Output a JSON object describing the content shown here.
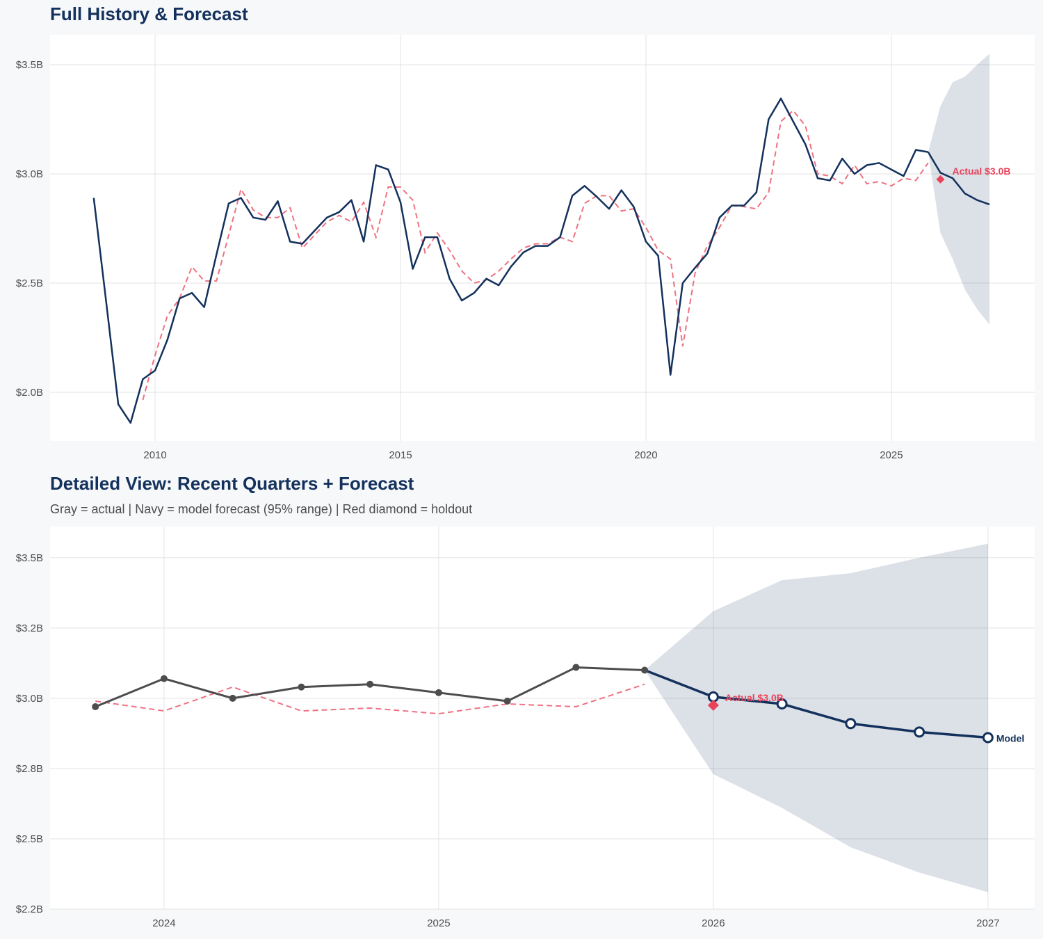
{
  "colors": {
    "actual_full": "#13315c",
    "actual_recent": "#4d4d4d",
    "forecast": "#13315c",
    "fitted": "#e8435a",
    "holdout": "#e8435a",
    "band": "#13315c",
    "background": "#f7f8fa"
  },
  "chart_data": [
    {
      "type": "line",
      "title": "Full History & Forecast",
      "xlabel": "",
      "ylabel": "",
      "xlim": [
        2007.86,
        2027.92
      ],
      "ylim": [
        1.777,
        3.637
      ],
      "grid": true,
      "x_ticks": [
        {
          "value": 2010,
          "label": "2010"
        },
        {
          "value": 2015,
          "label": "2015"
        },
        {
          "value": 2020,
          "label": "2020"
        },
        {
          "value": 2025,
          "label": "2025"
        }
      ],
      "y_ticks": [
        {
          "value": 2.0,
          "label": "$2.0B"
        },
        {
          "value": 2.5,
          "label": "$2.5B"
        },
        {
          "value": 3.0,
          "label": "$3.0B"
        },
        {
          "value": 3.5,
          "label": "$3.5B"
        }
      ],
      "actual": {
        "x": [
          2008.75,
          2009,
          2009.25,
          2009.5,
          2009.75,
          2010,
          2010.25,
          2010.5,
          2010.75,
          2011,
          2011.25,
          2011.5,
          2011.75,
          2012,
          2012.25,
          2012.5,
          2012.75,
          2013,
          2013.25,
          2013.5,
          2013.75,
          2014,
          2014.25,
          2014.5,
          2014.75,
          2015,
          2015.25,
          2015.5,
          2015.75,
          2016,
          2016.25,
          2016.5,
          2016.75,
          2017,
          2017.25,
          2017.5,
          2017.75,
          2018,
          2018.25,
          2018.5,
          2018.75,
          2019,
          2019.25,
          2019.5,
          2019.75,
          2020,
          2020.25,
          2020.5,
          2020.75,
          2021,
          2021.25,
          2021.5,
          2021.75,
          2022,
          2022.25,
          2022.5,
          2022.75,
          2023,
          2023.25,
          2023.5,
          2023.75,
          2024,
          2024.25,
          2024.5,
          2024.75,
          2025,
          2025.25,
          2025.5,
          2025.75
        ],
        "y": [
          2.89,
          2.42,
          1.945,
          1.86,
          2.06,
          2.1,
          2.24,
          2.43,
          2.455,
          2.39,
          2.63,
          2.865,
          2.89,
          2.8,
          2.79,
          2.875,
          2.69,
          2.68,
          2.74,
          2.8,
          2.825,
          2.88,
          2.69,
          3.04,
          3.02,
          2.87,
          2.565,
          2.71,
          2.71,
          2.52,
          2.42,
          2.455,
          2.52,
          2.49,
          2.575,
          2.64,
          2.67,
          2.67,
          2.71,
          2.9,
          2.945,
          2.895,
          2.84,
          2.925,
          2.85,
          2.69,
          2.625,
          2.08,
          2.5,
          2.57,
          2.635,
          2.8,
          2.855,
          2.855,
          2.915,
          3.25,
          3.345,
          3.24,
          3.135,
          2.98,
          2.97,
          3.07,
          3.0,
          3.04,
          3.05,
          3.02,
          2.99,
          3.11,
          3.1
        ]
      },
      "fitted": {
        "x": [
          2009.75,
          2010,
          2010.25,
          2010.5,
          2010.75,
          2011,
          2011.25,
          2011.5,
          2011.75,
          2012,
          2012.25,
          2012.5,
          2012.75,
          2013,
          2013.25,
          2013.5,
          2013.75,
          2014,
          2014.25,
          2014.5,
          2014.75,
          2015,
          2015.25,
          2015.5,
          2015.75,
          2016,
          2016.25,
          2016.5,
          2016.75,
          2017,
          2017.25,
          2017.5,
          2017.75,
          2018,
          2018.25,
          2018.5,
          2018.75,
          2019,
          2019.25,
          2019.5,
          2019.75,
          2020,
          2020.25,
          2020.5,
          2020.75,
          2021,
          2021.25,
          2021.5,
          2021.75,
          2022,
          2022.25,
          2022.5,
          2022.75,
          2023,
          2023.25,
          2023.5,
          2023.75,
          2024,
          2024.25,
          2024.5,
          2024.75,
          2025,
          2025.25,
          2025.5,
          2025.75
        ],
        "y": [
          1.965,
          2.17,
          2.35,
          2.43,
          2.575,
          2.51,
          2.51,
          2.72,
          2.93,
          2.835,
          2.8,
          2.8,
          2.845,
          2.66,
          2.72,
          2.78,
          2.81,
          2.78,
          2.87,
          2.71,
          2.94,
          2.94,
          2.88,
          2.64,
          2.73,
          2.65,
          2.555,
          2.5,
          2.515,
          2.555,
          2.61,
          2.66,
          2.68,
          2.68,
          2.71,
          2.69,
          2.865,
          2.9,
          2.9,
          2.83,
          2.84,
          2.755,
          2.65,
          2.61,
          2.21,
          2.545,
          2.67,
          2.755,
          2.855,
          2.85,
          2.84,
          2.915,
          3.24,
          3.29,
          3.22,
          3.0,
          2.99,
          2.955,
          3.04,
          2.955,
          2.965,
          2.945,
          2.98,
          2.97,
          3.05
        ]
      },
      "forecast": {
        "x": [
          2026,
          2026.25,
          2026.5,
          2026.75,
          2027
        ],
        "y": [
          3.005,
          2.98,
          2.91,
          2.88,
          2.86
        ]
      },
      "band": {
        "x": [
          2025.75,
          2026,
          2026.25,
          2026.5,
          2026.75,
          2027
        ],
        "upper": [
          3.1,
          3.31,
          3.42,
          3.445,
          3.5,
          3.55
        ],
        "lower": [
          3.1,
          2.73,
          2.61,
          2.47,
          2.38,
          2.31
        ]
      },
      "holdout": {
        "x": 2026,
        "y": 2.975,
        "label": "Actual $3.0B"
      }
    },
    {
      "type": "line",
      "title": "Detailed View: Recent Quarters + Forecast",
      "subtitle": "Gray = actual  |  Navy = model forecast (95% range)  |  Red diamond = holdout",
      "xlabel": "",
      "ylabel": "",
      "xlim": [
        2023.585,
        2027.17
      ],
      "ylim": [
        2.25,
        3.611
      ],
      "grid": true,
      "x_ticks": [
        {
          "value": 2024,
          "label": "2024"
        },
        {
          "value": 2025,
          "label": "2025"
        },
        {
          "value": 2026,
          "label": "2026"
        },
        {
          "value": 2027,
          "label": "2027"
        }
      ],
      "y_ticks": [
        {
          "value": 2.25,
          "label": "$2.2B"
        },
        {
          "value": 2.5,
          "label": "$2.5B"
        },
        {
          "value": 2.75,
          "label": "$2.8B"
        },
        {
          "value": 3.0,
          "label": "$3.0B"
        },
        {
          "value": 3.25,
          "label": "$3.2B"
        },
        {
          "value": 3.5,
          "label": "$3.5B"
        }
      ],
      "actual": {
        "x": [
          2023.75,
          2024,
          2024.25,
          2024.5,
          2024.75,
          2025,
          2025.25,
          2025.5,
          2025.75
        ],
        "y": [
          2.97,
          3.07,
          3.0,
          3.04,
          3.05,
          3.02,
          2.99,
          3.11,
          3.1
        ]
      },
      "fitted": {
        "x": [
          2023.75,
          2024,
          2024.25,
          2024.5,
          2024.75,
          2025,
          2025.25,
          2025.5,
          2025.75
        ],
        "y": [
          2.99,
          2.955,
          3.04,
          2.955,
          2.965,
          2.945,
          2.98,
          2.97,
          3.05
        ]
      },
      "forecast": {
        "x": [
          2026,
          2026.25,
          2026.5,
          2026.75,
          2027
        ],
        "y": [
          3.005,
          2.98,
          2.91,
          2.88,
          2.86
        ],
        "label": "Model"
      },
      "band": {
        "x": [
          2025.75,
          2026,
          2026.25,
          2026.5,
          2026.75,
          2027
        ],
        "upper": [
          3.1,
          3.31,
          3.42,
          3.445,
          3.5,
          3.55
        ],
        "lower": [
          3.1,
          2.73,
          2.61,
          2.47,
          2.38,
          2.31
        ]
      },
      "holdout": {
        "x": 2026,
        "y": 2.975,
        "label": "Actual $3.0B"
      }
    }
  ]
}
